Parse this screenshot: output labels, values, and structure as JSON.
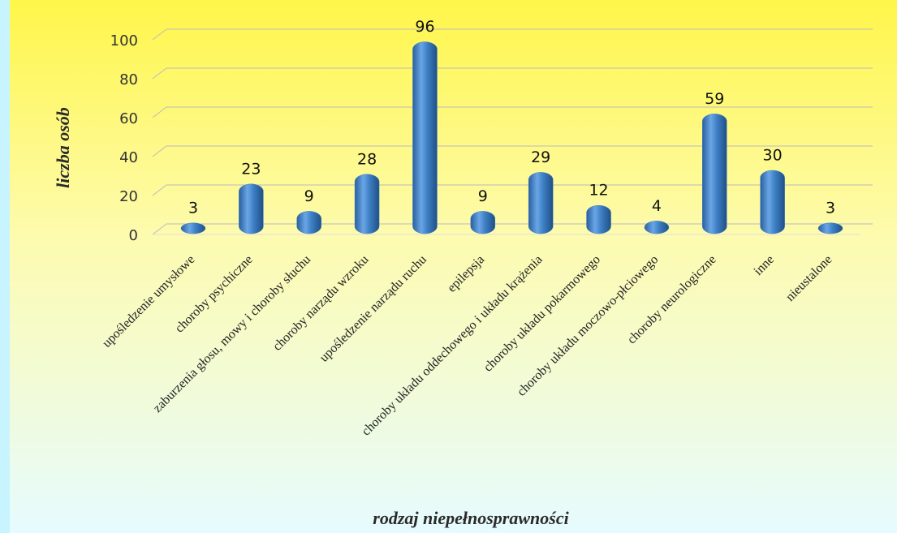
{
  "chart_data": {
    "type": "bar",
    "xlabel": "rodzaj niepełnosprawności",
    "ylabel": "liczba osób",
    "categories": [
      "upośledzenie umysłowe",
      "choroby psychiczne",
      "zaburzenia głosu, mowy i choroby słuchu",
      "choroby narządu wzroku",
      "upośledzenie narządu ruchu",
      "epilepsja",
      "choroby układu oddechowego i układu krążenia",
      "choroby układu pokarmowego",
      "choroby układu moczowo-płciowego",
      "choroby neurologiczne",
      "inne",
      "nieustalone"
    ],
    "values": [
      3,
      23,
      9,
      28,
      96,
      9,
      29,
      12,
      4,
      59,
      30,
      3
    ],
    "color": "#3d7fc4",
    "ylim": [
      0,
      100
    ],
    "yticks": [
      0,
      20,
      40,
      60,
      80,
      100
    ],
    "grid": true
  }
}
